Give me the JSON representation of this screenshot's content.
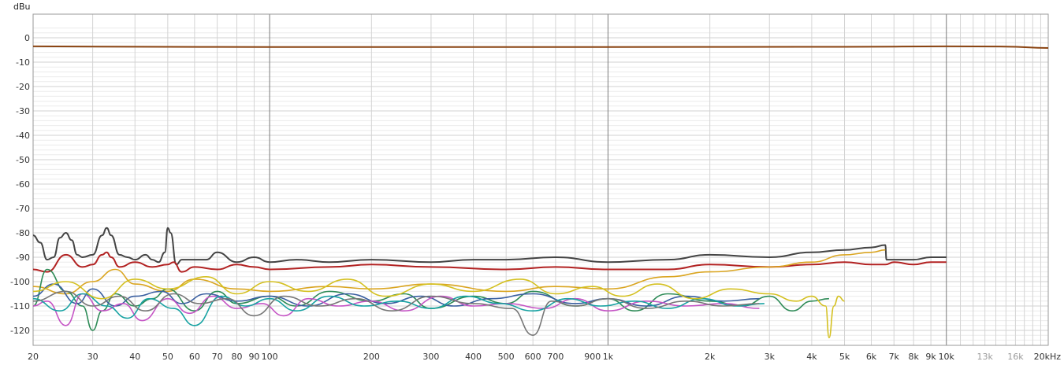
{
  "chart_data": {
    "type": "line",
    "title": "",
    "ylabel": "dBu",
    "xlabel": "",
    "x_scale": "log",
    "xlim": [
      20,
      20000
    ],
    "ylim": [
      -125,
      5
    ],
    "grid": true,
    "y_ticks": [
      0,
      -10,
      -20,
      -30,
      -40,
      -50,
      -60,
      -70,
      -80,
      -90,
      -100,
      -110,
      -120
    ],
    "x_ticks": [
      {
        "value": 20,
        "label": "20"
      },
      {
        "value": 30,
        "label": "30"
      },
      {
        "value": 40,
        "label": "40"
      },
      {
        "value": 50,
        "label": "50"
      },
      {
        "value": 60,
        "label": "60"
      },
      {
        "value": 70,
        "label": "70"
      },
      {
        "value": 80,
        "label": "80"
      },
      {
        "value": 90,
        "label": "90"
      },
      {
        "value": 100,
        "label": "100"
      },
      {
        "value": 200,
        "label": "200"
      },
      {
        "value": 300,
        "label": "300"
      },
      {
        "value": 400,
        "label": "400"
      },
      {
        "value": 500,
        "label": "500"
      },
      {
        "value": 600,
        "label": "600"
      },
      {
        "value": 700,
        "label": "700"
      },
      {
        "value": 900,
        "label": "900"
      },
      {
        "value": 1000,
        "label": "1k"
      },
      {
        "value": 2000,
        "label": "2k"
      },
      {
        "value": 3000,
        "label": "3k"
      },
      {
        "value": 4000,
        "label": "4k"
      },
      {
        "value": 5000,
        "label": "5k"
      },
      {
        "value": 6000,
        "label": "6k"
      },
      {
        "value": 7000,
        "label": "7k"
      },
      {
        "value": 8000,
        "label": "8k"
      },
      {
        "value": 9000,
        "label": "9k"
      },
      {
        "value": 10000,
        "label": "10k"
      },
      {
        "value": 13000,
        "label": "13k",
        "faded": true
      },
      {
        "value": 16000,
        "label": "16k",
        "faded": true
      },
      {
        "value": 20000,
        "label": "20kHz"
      }
    ],
    "series": [
      {
        "color": "#8B4513",
        "x": [
          20,
          50,
          100,
          1000,
          5000,
          10000,
          15000,
          20000
        ],
        "y": [
          -3.5,
          -3.7,
          -3.8,
          -3.8,
          -3.7,
          -3.5,
          -3.6,
          -4.2
        ]
      },
      {
        "color": "#444444",
        "x": [
          20,
          21,
          22,
          23,
          24,
          25,
          26,
          27,
          28,
          30,
          32,
          33,
          34,
          36,
          38,
          40,
          43,
          45,
          47,
          49,
          50,
          51,
          53,
          55,
          60,
          65,
          70,
          80,
          90,
          100,
          120,
          150,
          200,
          300,
          400,
          500,
          700,
          1000,
          1500,
          2000,
          3000,
          4000,
          5000,
          6000,
          6600,
          6650,
          7000,
          8000,
          9000,
          10000
        ],
        "y": [
          -81,
          -84,
          -91,
          -90,
          -82,
          -80,
          -83,
          -89,
          -90,
          -89,
          -81,
          -78,
          -81,
          -89,
          -90,
          -91,
          -89,
          -91,
          -92,
          -88,
          -78,
          -80,
          -93,
          -91,
          -91,
          -91,
          -88,
          -92,
          -90,
          -92,
          -91,
          -92,
          -91,
          -92,
          -91,
          -91,
          -90,
          -92,
          -91,
          -89,
          -90,
          -88,
          -87,
          -86,
          -85,
          -91,
          -91,
          -91,
          -90,
          -90
        ]
      },
      {
        "color": "#B22222",
        "x": [
          20,
          22,
          25,
          28,
          30,
          32,
          33,
          34,
          36,
          40,
          45,
          50,
          52,
          55,
          60,
          70,
          80,
          90,
          100,
          150,
          200,
          300,
          500,
          700,
          1000,
          1500,
          2000,
          3000,
          4000,
          5000,
          6000,
          6600,
          7000,
          8000,
          9000,
          10000
        ],
        "y": [
          -95,
          -96,
          -89,
          -94,
          -93,
          -89,
          -88,
          -90,
          -94,
          -92,
          -94,
          -93,
          -92,
          -96,
          -94,
          -95,
          -93,
          -94,
          -95,
          -94,
          -93,
          -94,
          -95,
          -94,
          -95,
          -95,
          -93,
          -94,
          -93,
          -92,
          -93,
          -93,
          -92,
          -93,
          -92,
          -92
        ]
      },
      {
        "color": "#DAA520",
        "x": [
          20,
          25,
          30,
          35,
          40,
          50,
          60,
          80,
          100,
          150,
          200,
          300,
          500,
          700,
          1000,
          1500,
          2000,
          3000,
          4000,
          5000,
          6000,
          6600
        ],
        "y": [
          -102,
          -105,
          -100,
          -95,
          -101,
          -104,
          -99,
          -103,
          -104,
          -102,
          -103,
          -101,
          -104,
          -102,
          -103,
          -98,
          -96,
          -94,
          -92,
          -89,
          -88,
          -87
        ]
      },
      {
        "color": "#2E8B57",
        "x": [
          20,
          22,
          25,
          28,
          30,
          32,
          35,
          40,
          45,
          50,
          60,
          70,
          80,
          100,
          120,
          150,
          200,
          250,
          300,
          400,
          500,
          600,
          800,
          1000,
          1200,
          1500,
          2000,
          2500,
          3000,
          3500,
          4000,
          4500
        ],
        "y": [
          -110,
          -95,
          -104,
          -110,
          -120,
          -112,
          -105,
          -110,
          -107,
          -103,
          -112,
          -104,
          -109,
          -106,
          -110,
          -104,
          -108,
          -105,
          -111,
          -106,
          -109,
          -104,
          -110,
          -107,
          -112,
          -105,
          -108,
          -110,
          -106,
          -112,
          -108,
          -107
        ]
      },
      {
        "color": "#3A5FA0",
        "x": [
          20,
          23,
          27,
          30,
          35,
          40,
          48,
          55,
          65,
          80,
          100,
          130,
          170,
          220,
          280,
          350,
          450,
          600,
          800,
          1000,
          1300,
          1700,
          2200,
          2800
        ],
        "y": [
          -106,
          -101,
          -109,
          -103,
          -110,
          -106,
          -104,
          -109,
          -105,
          -108,
          -106,
          -110,
          -105,
          -109,
          -106,
          -110,
          -107,
          -105,
          -109,
          -107,
          -110,
          -106,
          -108,
          -107
        ]
      },
      {
        "color": "#C554C5",
        "x": [
          20,
          22,
          25,
          28,
          32,
          37,
          42,
          50,
          58,
          68,
          80,
          95,
          110,
          130,
          160,
          200,
          250,
          320,
          400,
          500,
          650,
          800,
          1000,
          1300,
          1700,
          2200,
          2800
        ],
        "y": [
          -110,
          -108,
          -118,
          -105,
          -112,
          -109,
          -116,
          -107,
          -113,
          -106,
          -111,
          -109,
          -114,
          -107,
          -110,
          -108,
          -112,
          -106,
          -110,
          -109,
          -111,
          -107,
          -112,
          -108,
          -110,
          -109,
          -111
        ]
      },
      {
        "color": "#17A2A2",
        "x": [
          20,
          24,
          28,
          33,
          38,
          44,
          52,
          60,
          72,
          85,
          100,
          120,
          150,
          190,
          240,
          300,
          380,
          480,
          600,
          760,
          950,
          1200,
          1500,
          1900,
          2400,
          2900
        ],
        "y": [
          -107,
          -112,
          -105,
          -110,
          -115,
          -107,
          -111,
          -118,
          -106,
          -110,
          -107,
          -112,
          -106,
          -110,
          -108,
          -111,
          -106,
          -109,
          -112,
          -107,
          -110,
          -108,
          -111,
          -107,
          -110,
          -109
        ]
      },
      {
        "color": "#777777",
        "x": [
          20,
          25,
          30,
          36,
          43,
          52,
          62,
          75,
          90,
          110,
          140,
          180,
          230,
          300,
          400,
          520,
          600,
          680,
          800,
          1000,
          1300,
          1700,
          2200,
          2800
        ],
        "y": [
          -108,
          -104,
          -110,
          -106,
          -112,
          -105,
          -109,
          -107,
          -114,
          -106,
          -110,
          -107,
          -112,
          -106,
          -109,
          -111,
          -122,
          -108,
          -110,
          -107,
          -111,
          -108,
          -110,
          -109
        ]
      },
      {
        "color": "#D4C020",
        "x": [
          20,
          25,
          32,
          40,
          50,
          65,
          80,
          100,
          130,
          170,
          220,
          300,
          400,
          550,
          700,
          900,
          1100,
          1400,
          1800,
          2300,
          3000,
          3600,
          4000,
          4400,
          4500,
          4650,
          4800,
          5000
        ],
        "y": [
          -104,
          -100,
          -107,
          -99,
          -103,
          -98,
          -105,
          -100,
          -104,
          -99,
          -106,
          -101,
          -104,
          -99,
          -105,
          -102,
          -106,
          -101,
          -107,
          -103,
          -105,
          -108,
          -106,
          -110,
          -123,
          -110,
          -106,
          -108
        ]
      }
    ]
  }
}
